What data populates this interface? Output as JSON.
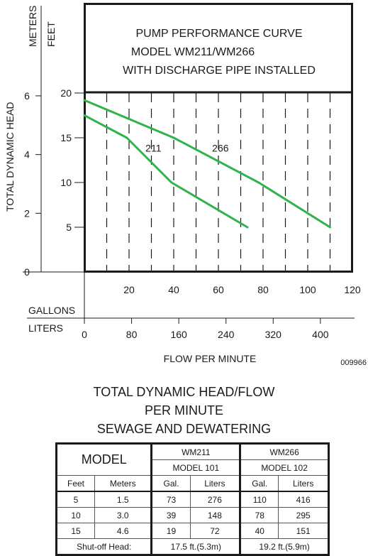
{
  "chart_data": {
    "type": "line",
    "title": [
      "PUMP PERFORMANCE CURVE",
      "MODEL WM211/WM266",
      "WITH DISCHARGE PIPE INSTALLED"
    ],
    "ylabel": "TOTAL DYNAMIC HEAD",
    "xlabel": "FLOW PER MINUTE",
    "y_units": {
      "meters": "METERS",
      "feet": "FEET"
    },
    "y_meters_ticks": [
      "0",
      "2",
      "4",
      "6"
    ],
    "y_feet_ticks": [
      "5",
      "10",
      "15",
      "20"
    ],
    "x_units": {
      "gallons": "GALLONS",
      "liters": "LITERS"
    },
    "x_gallons_ticks": [
      "20",
      "40",
      "60",
      "80",
      "100",
      "120"
    ],
    "x_liters_ticks": [
      "0",
      "80",
      "160",
      "240",
      "320",
      "400"
    ],
    "xlim": [
      0,
      120
    ],
    "ylim": [
      0,
      20
    ],
    "grid": true,
    "series": [
      {
        "name": "266",
        "color": "#2fb34a",
        "x": [
          0,
          40,
          78,
          110
        ],
        "y": [
          19.2,
          15,
          10,
          5
        ]
      },
      {
        "name": "211",
        "color": "#2fb34a",
        "x": [
          0,
          19,
          39,
          73
        ],
        "y": [
          17.5,
          15,
          10,
          5
        ]
      }
    ],
    "code": "009966"
  },
  "section_title": [
    "TOTAL DYNAMIC HEAD/FLOW",
    "PER MINUTE",
    "SEWAGE AND DEWATERING"
  ],
  "table": {
    "model_label": "MODEL",
    "groups": [
      {
        "name": "WM211",
        "sub": "MODEL 101"
      },
      {
        "name": "WM266",
        "sub": "MODEL 102"
      }
    ],
    "columns": [
      "Feet",
      "Meters",
      "Gal.",
      "Liters",
      "Gal.",
      "Liters"
    ],
    "rows": [
      [
        "5",
        "1.5",
        "73",
        "276",
        "110",
        "416"
      ],
      [
        "10",
        "3.0",
        "39",
        "148",
        "78",
        "295"
      ],
      [
        "15",
        "4.6",
        "19",
        "72",
        "40",
        "151"
      ]
    ],
    "shutoff_label": "Shut-off Head:",
    "shutoff": [
      "17.5 ft.(5.3m)",
      "19.2 ft.(5.9m)"
    ]
  }
}
